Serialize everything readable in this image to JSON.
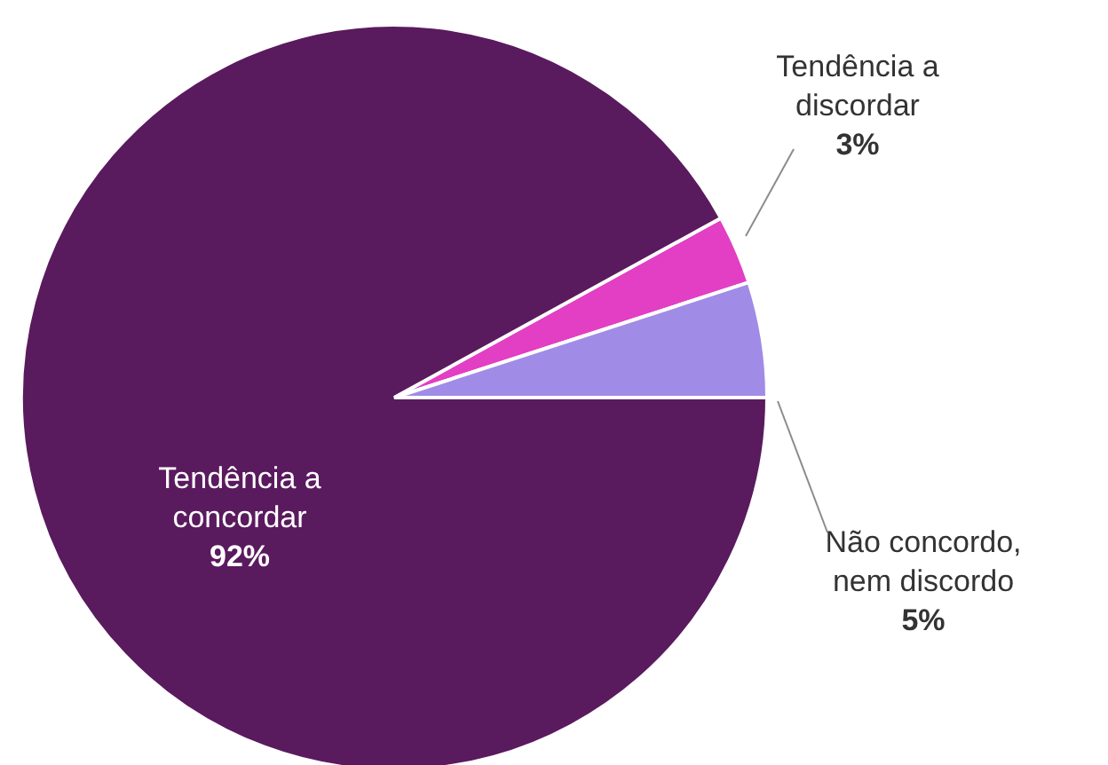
{
  "chart_data": {
    "type": "pie",
    "categories": [
      "Tendência a discordar",
      "Não concordo, nem discordo",
      "Tendência a concordar"
    ],
    "values": [
      3,
      5,
      92
    ],
    "colors": [
      "#e23fc4",
      "#a08ce6",
      "#5a1a5e"
    ],
    "value_labels": [
      "3%",
      "5%",
      "92%"
    ]
  }
}
